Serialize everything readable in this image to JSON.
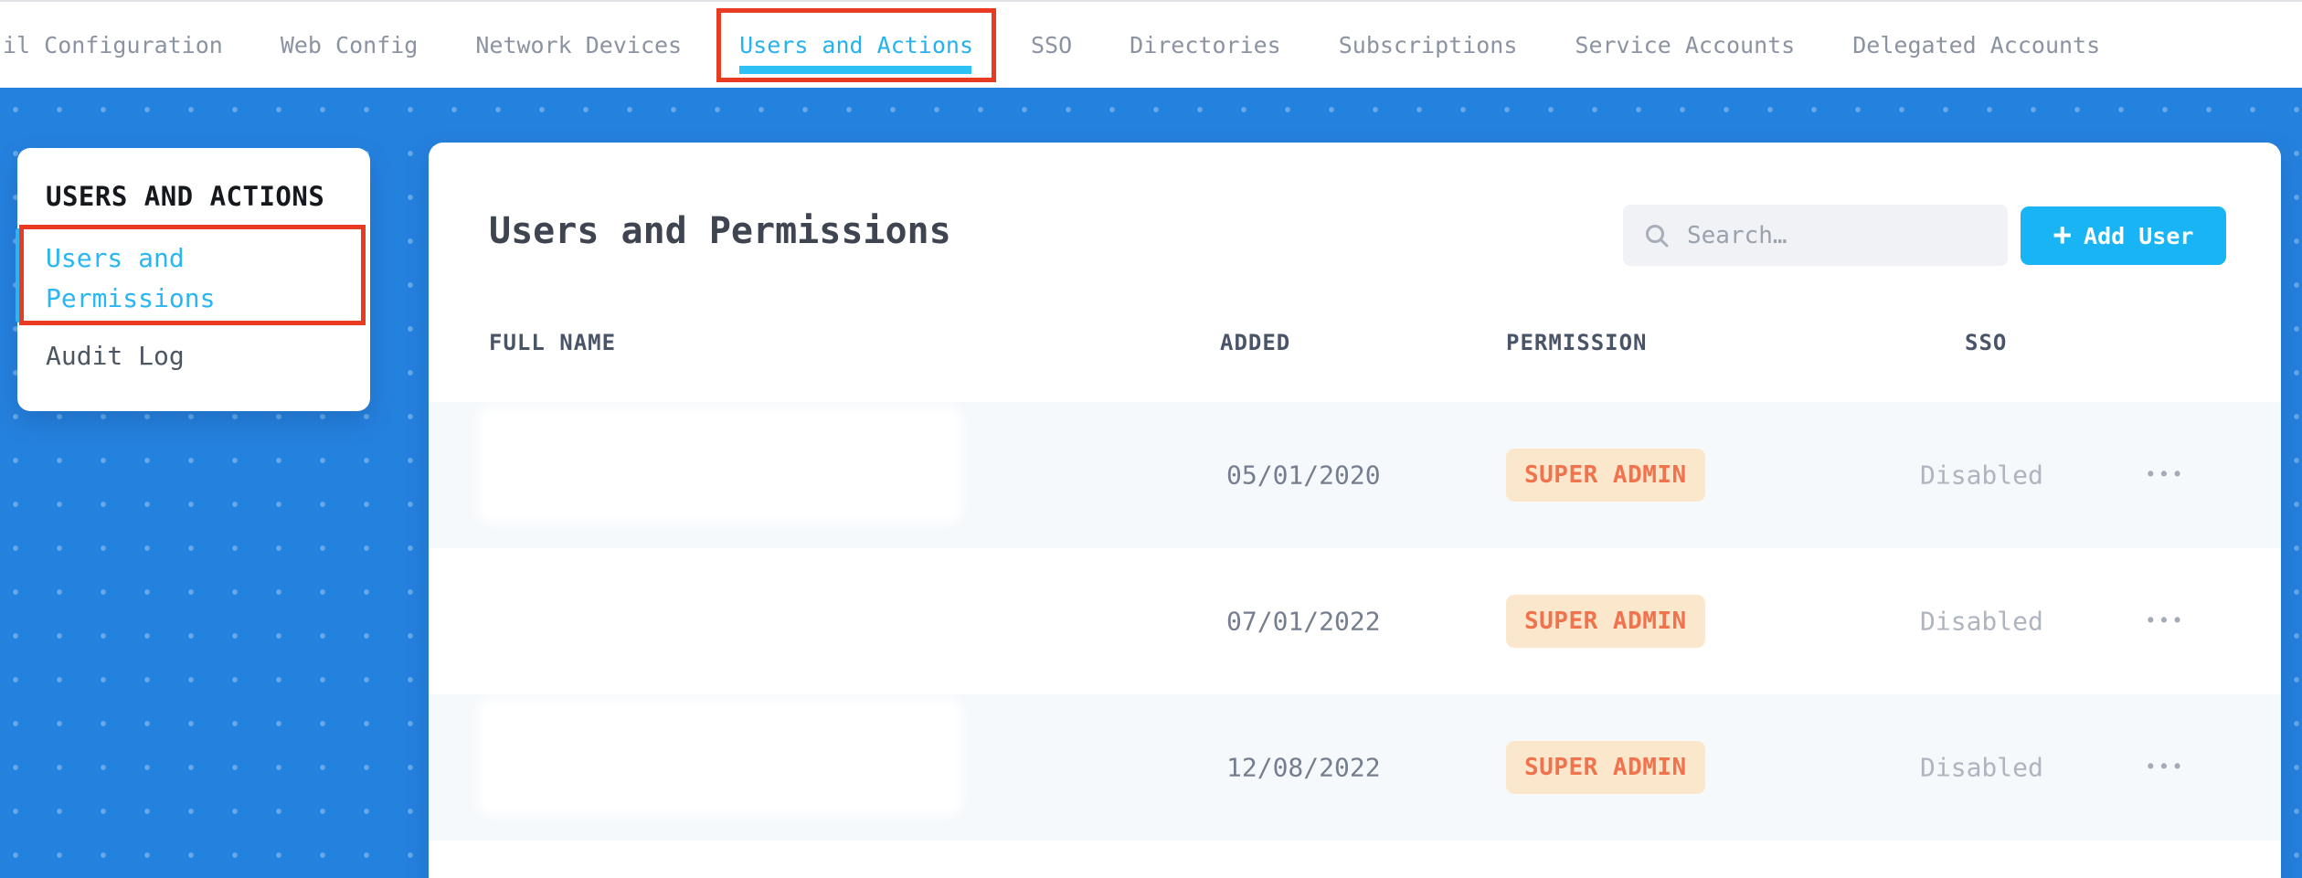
{
  "nav": {
    "tabs": [
      {
        "label": "il Configuration",
        "active": false
      },
      {
        "label": "Web Config",
        "active": false
      },
      {
        "label": "Network Devices",
        "active": false
      },
      {
        "label": "Users and Actions",
        "active": true
      },
      {
        "label": "SSO",
        "active": false
      },
      {
        "label": "Directories",
        "active": false
      },
      {
        "label": "Subscriptions",
        "active": false
      },
      {
        "label": "Service Accounts",
        "active": false
      },
      {
        "label": "Delegated Accounts",
        "active": false
      }
    ]
  },
  "sidebar": {
    "heading": "USERS AND ACTIONS",
    "items": [
      {
        "label": "Users and Permissions",
        "selected": true
      },
      {
        "label": "Audit Log",
        "selected": false
      }
    ]
  },
  "main": {
    "title": "Users and Permissions",
    "search_placeholder": "Search…",
    "add_user": {
      "plus_glyph": "+",
      "label": "Add User"
    },
    "table": {
      "columns": [
        "FULL NAME",
        "ADDED",
        "PERMISSION",
        "SSO"
      ],
      "more_glyph": "•••",
      "rows": [
        {
          "full_name": "",
          "added": "05/01/2020",
          "permission": "SUPER ADMIN",
          "sso": "Disabled"
        },
        {
          "full_name": "",
          "added": "07/01/2022",
          "permission": "SUPER ADMIN",
          "sso": "Disabled"
        },
        {
          "full_name": "",
          "added": "12/08/2022",
          "permission": "SUPER ADMIN",
          "sso": "Disabled"
        }
      ]
    }
  },
  "colors": {
    "background_blue": "#2581de",
    "accent_cyan": "#25b2f0",
    "annotation_red": "#e83b21",
    "button_blue": "#18b4f4",
    "badge_background": "#fbe7cc",
    "badge_text": "#f0734e"
  }
}
